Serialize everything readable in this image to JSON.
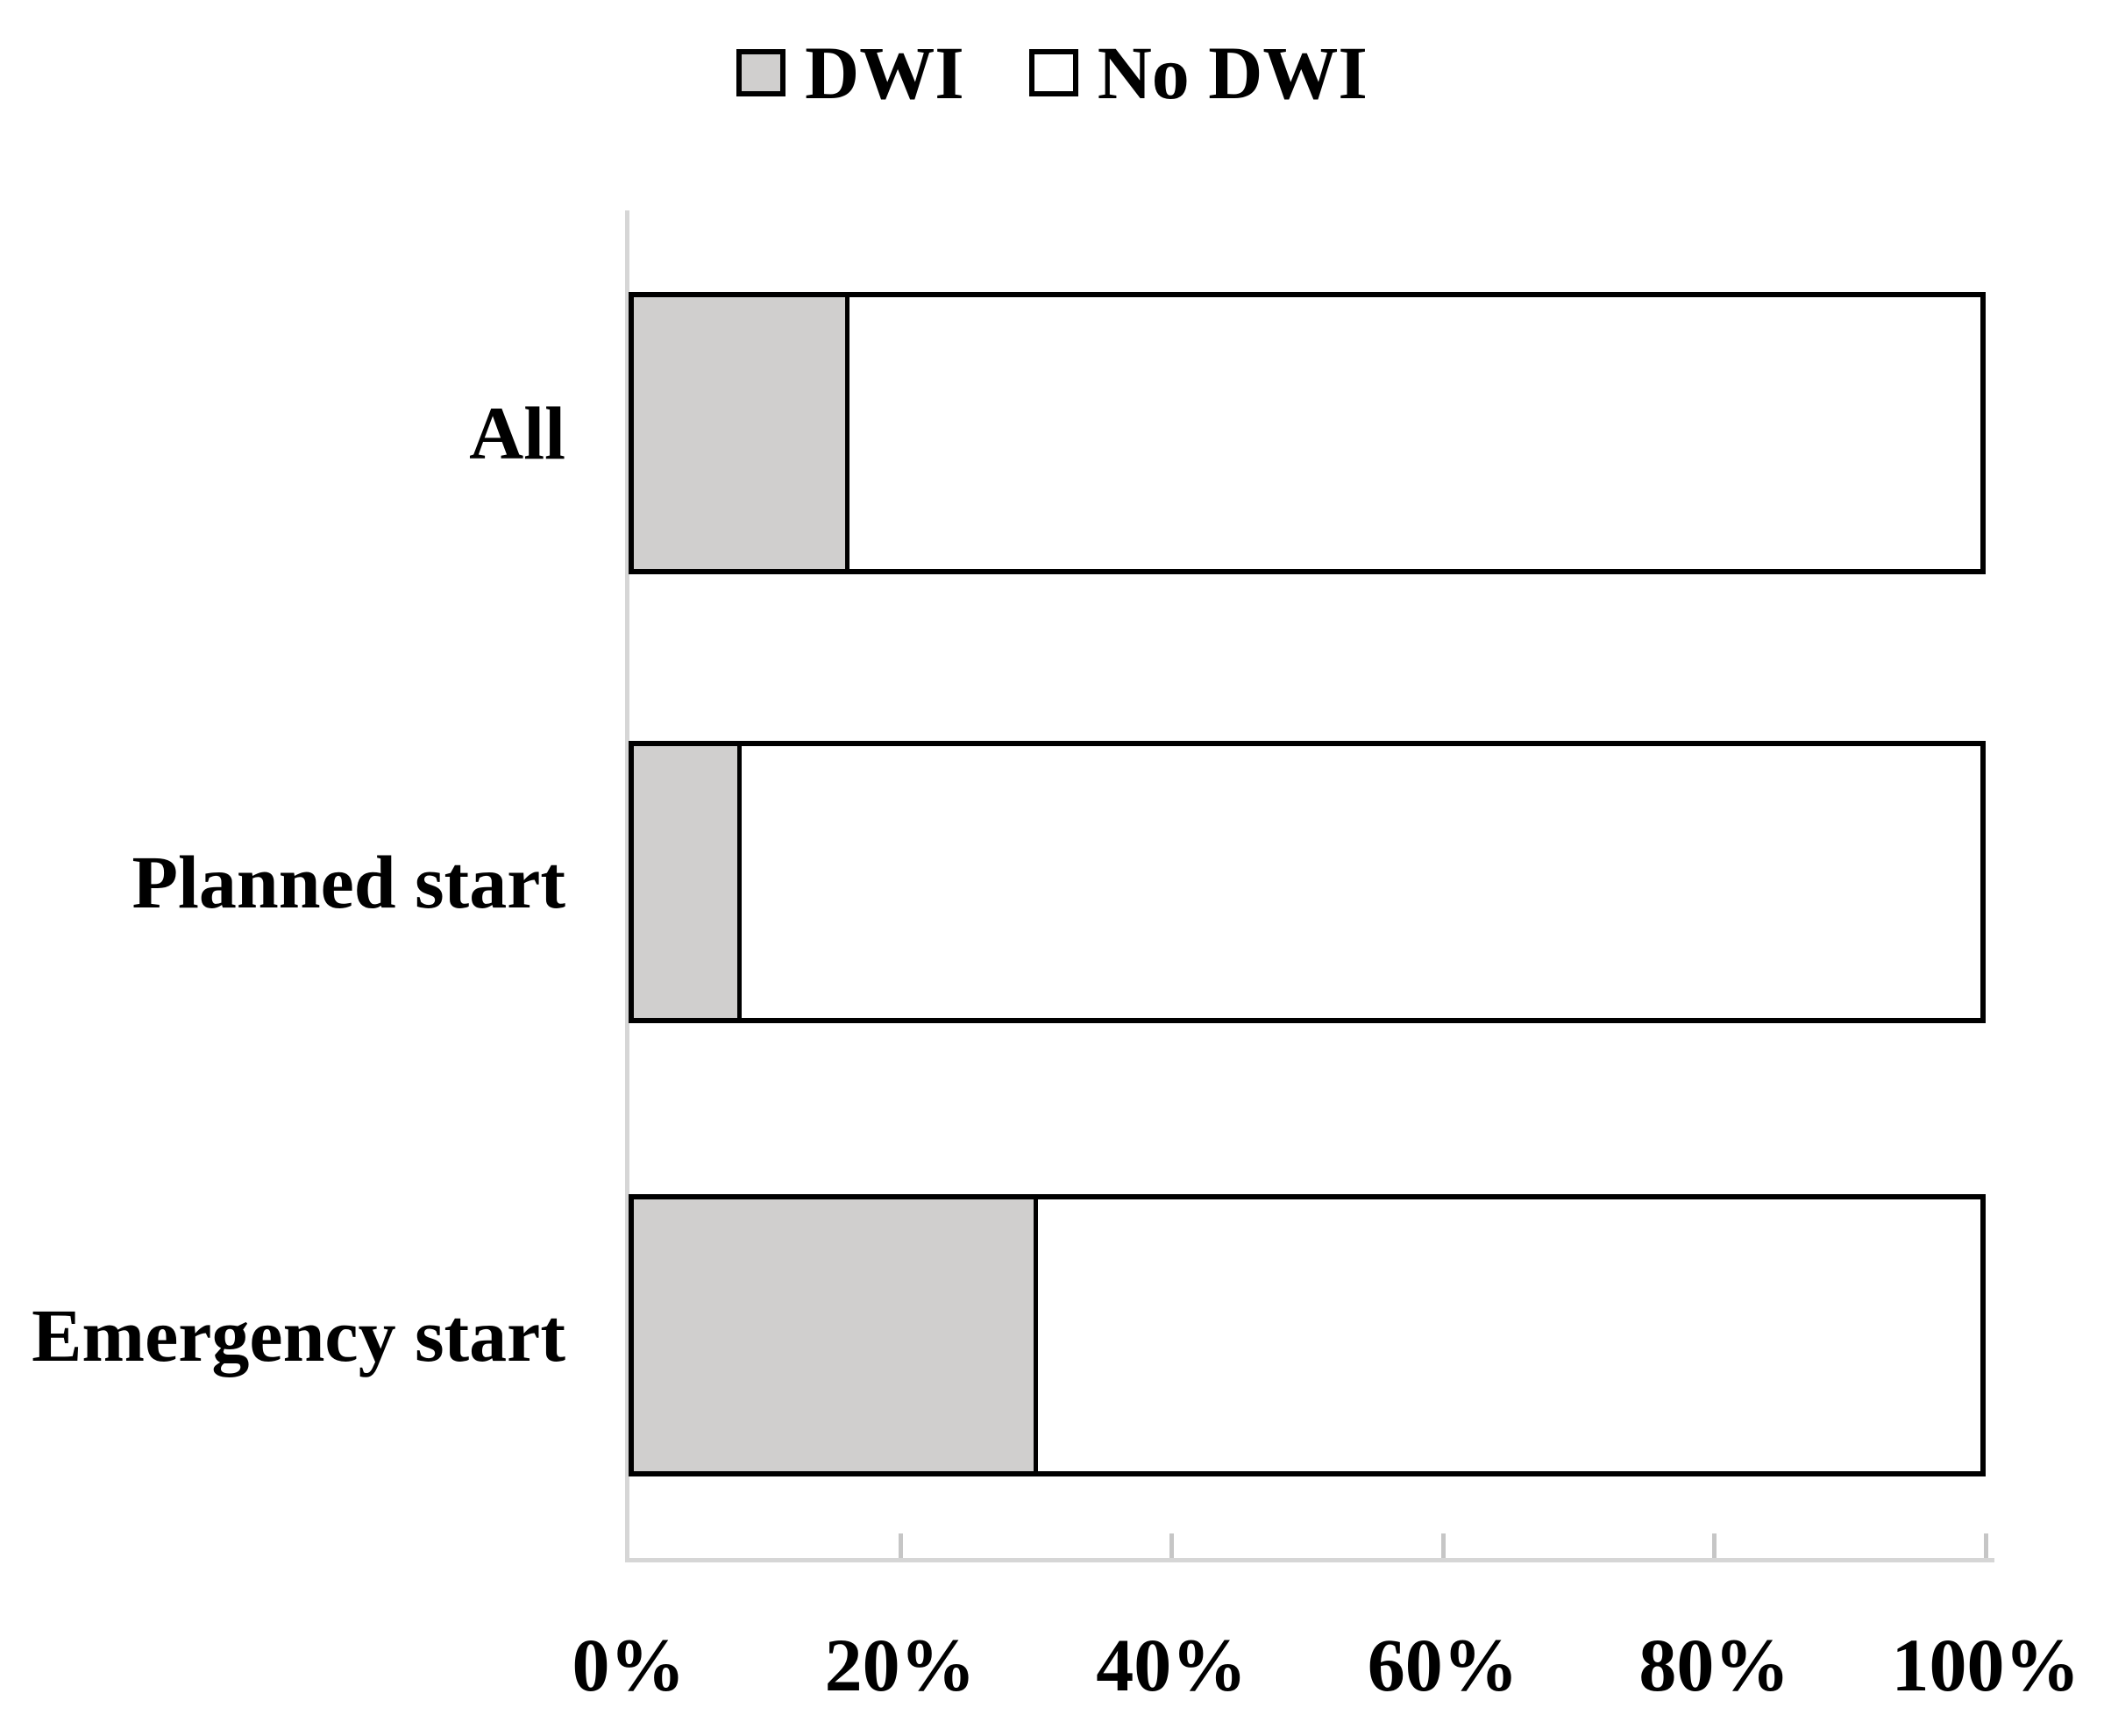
{
  "legend": {
    "items": [
      {
        "label": "DWI",
        "swatch_color": "#d0cfce"
      },
      {
        "label": "No DWI",
        "swatch_color": "#ffffff"
      }
    ]
  },
  "chart_data": {
    "type": "bar",
    "orientation": "horizontal",
    "stacked": true,
    "stacked_total_percent": 100,
    "title": "",
    "xlabel": "",
    "ylabel": "",
    "categories": [
      "All",
      "Planned start",
      "Emergency start"
    ],
    "series": [
      {
        "name": "DWI",
        "values": [
          16,
          8,
          30
        ],
        "color": "#d0cfce"
      },
      {
        "name": "No DWI",
        "values": [
          84,
          92,
          70
        ],
        "color": "#ffffff"
      }
    ],
    "x_axis": {
      "range": [
        0,
        100
      ],
      "unit": "%",
      "tick_labels": [
        "0%",
        "20%",
        "40%",
        "60%",
        "80%",
        "100%"
      ],
      "ticks_style": "inside"
    },
    "legend_position": "top",
    "gridlines": false
  },
  "colors": {
    "bar_outline": "#000000",
    "dwi_fill": "#d0cfce",
    "nodwi_fill": "#ffffff",
    "axis_line": "#d6d6d6",
    "tick_mark": "#c6c6c6",
    "text": "#000000",
    "background": "#ffffff"
  }
}
